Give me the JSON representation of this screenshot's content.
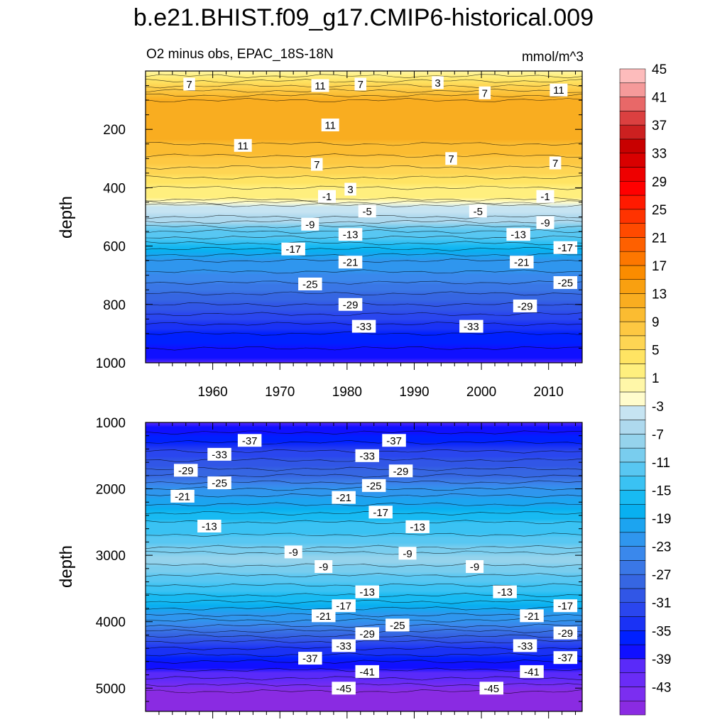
{
  "main_title": "b.e21.BHIST.f09_g17.CMIP6-historical.009",
  "chart_data": [
    {
      "type": "contour",
      "panel": "upper",
      "left_title": "O2 minus obs, EPAC_18S-18N",
      "right_title": "mmol/m^3",
      "ylabel": "depth",
      "xlim": [
        1950,
        2015
      ],
      "ylim": [
        0,
        1000
      ],
      "y_inverted": true,
      "x_ticks": [
        1960,
        1970,
        1980,
        1990,
        2000,
        2010
      ],
      "y_ticks": [
        200,
        400,
        600,
        800,
        1000
      ],
      "x_tick_labels": [
        "1960",
        "1970",
        "1980",
        "1990",
        "2000",
        "2010"
      ],
      "y_tick_labels": [
        "200",
        "400",
        "600",
        "800",
        "1000"
      ],
      "profile": [
        {
          "depth": 0,
          "value": 1
        },
        {
          "depth": 60,
          "value": 8
        },
        {
          "depth": 100,
          "value": 13
        },
        {
          "depth": 250,
          "value": 11
        },
        {
          "depth": 330,
          "value": 7
        },
        {
          "depth": 400,
          "value": 3
        },
        {
          "depth": 440,
          "value": 1
        },
        {
          "depth": 460,
          "value": -3
        },
        {
          "depth": 500,
          "value": -5
        },
        {
          "depth": 550,
          "value": -11
        },
        {
          "depth": 650,
          "value": -21
        },
        {
          "depth": 800,
          "value": -29
        },
        {
          "depth": 900,
          "value": -35
        },
        {
          "depth": 1000,
          "value": -39
        }
      ],
      "contour_labels": [
        {
          "text": "7",
          "year": 1956.5,
          "depth": 45
        },
        {
          "text": "11",
          "year": 1976,
          "depth": 50
        },
        {
          "text": "7",
          "year": 1982,
          "depth": 45
        },
        {
          "text": "3",
          "year": 1993.5,
          "depth": 40
        },
        {
          "text": "7",
          "year": 2000.5,
          "depth": 75
        },
        {
          "text": "11",
          "year": 2011.5,
          "depth": 65
        },
        {
          "text": "11",
          "year": 1964.5,
          "depth": 255
        },
        {
          "text": "11",
          "year": 1977.5,
          "depth": 185
        },
        {
          "text": "7",
          "year": 1975.5,
          "depth": 320
        },
        {
          "text": "7",
          "year": 1995.5,
          "depth": 300
        },
        {
          "text": "7",
          "year": 2011,
          "depth": 315
        },
        {
          "text": "3",
          "year": 1980.5,
          "depth": 405
        },
        {
          "text": "-1",
          "year": 1977,
          "depth": 430
        },
        {
          "text": "-1",
          "year": 2009.5,
          "depth": 430
        },
        {
          "text": "-5",
          "year": 1983,
          "depth": 480
        },
        {
          "text": "-5",
          "year": 1999.5,
          "depth": 480
        },
        {
          "text": "-9",
          "year": 1974.5,
          "depth": 525
        },
        {
          "text": "-9",
          "year": 2009.5,
          "depth": 520
        },
        {
          "text": "-13",
          "year": 1980.5,
          "depth": 560
        },
        {
          "text": "-13",
          "year": 2005.5,
          "depth": 560
        },
        {
          "text": "-17",
          "year": 1972,
          "depth": 610
        },
        {
          "text": "-17",
          "year": 2012.5,
          "depth": 605
        },
        {
          "text": "-21",
          "year": 1980.5,
          "depth": 655
        },
        {
          "text": "-21",
          "year": 2006,
          "depth": 655
        },
        {
          "text": "-25",
          "year": 1974.5,
          "depth": 730
        },
        {
          "text": "-25",
          "year": 2012.5,
          "depth": 725
        },
        {
          "text": "-29",
          "year": 1980.5,
          "depth": 800
        },
        {
          "text": "-29",
          "year": 2006.5,
          "depth": 805
        },
        {
          "text": "-33",
          "year": 1982.5,
          "depth": 875
        },
        {
          "text": "-33",
          "year": 1998.5,
          "depth": 875
        }
      ]
    },
    {
      "type": "contour",
      "panel": "lower",
      "ylabel": "depth",
      "xlim": [
        1950,
        2015
      ],
      "ylim": [
        1000,
        5350
      ],
      "y_inverted": true,
      "x_ticks": [
        1960,
        1970,
        1980,
        1990,
        2000,
        2010
      ],
      "y_ticks": [
        1000,
        2000,
        3000,
        4000,
        5000
      ],
      "y_tick_labels": [
        "1000",
        "2000",
        "3000",
        "4000",
        "5000"
      ],
      "profile": [
        {
          "depth": 1000,
          "value": -39
        },
        {
          "depth": 1300,
          "value": -35
        },
        {
          "depth": 1700,
          "value": -29
        },
        {
          "depth": 2100,
          "value": -21
        },
        {
          "depth": 2500,
          "value": -15
        },
        {
          "depth": 2880,
          "value": -11
        },
        {
          "depth": 3000,
          "value": -8
        },
        {
          "depth": 3150,
          "value": -9
        },
        {
          "depth": 3300,
          "value": -11
        },
        {
          "depth": 3600,
          "value": -15
        },
        {
          "depth": 3900,
          "value": -21
        },
        {
          "depth": 4300,
          "value": -31
        },
        {
          "depth": 4600,
          "value": -37
        },
        {
          "depth": 4850,
          "value": -41
        },
        {
          "depth": 5050,
          "value": -45
        },
        {
          "depth": 5350,
          "value": -46
        }
      ],
      "contour_labels": [
        {
          "text": "-37",
          "year": 1965.5,
          "depth": 1270
        },
        {
          "text": "-37",
          "year": 1987,
          "depth": 1270
        },
        {
          "text": "-33",
          "year": 1961,
          "depth": 1480
        },
        {
          "text": "-33",
          "year": 1983,
          "depth": 1500
        },
        {
          "text": "-29",
          "year": 1956,
          "depth": 1720
        },
        {
          "text": "-29",
          "year": 1988,
          "depth": 1730
        },
        {
          "text": "-25",
          "year": 1961,
          "depth": 1910
        },
        {
          "text": "-25",
          "year": 1984,
          "depth": 1950
        },
        {
          "text": "-21",
          "year": 1955.5,
          "depth": 2110
        },
        {
          "text": "-21",
          "year": 1979.5,
          "depth": 2130
        },
        {
          "text": "-17",
          "year": 1985,
          "depth": 2350
        },
        {
          "text": "-13",
          "year": 1959.5,
          "depth": 2560
        },
        {
          "text": "-13",
          "year": 1990.5,
          "depth": 2570
        },
        {
          "text": "-9",
          "year": 1972,
          "depth": 2950
        },
        {
          "text": "-9",
          "year": 1989,
          "depth": 2970
        },
        {
          "text": "-9",
          "year": 1976.5,
          "depth": 3170
        },
        {
          "text": "-9",
          "year": 1999,
          "depth": 3170
        },
        {
          "text": "-13",
          "year": 1983,
          "depth": 3550
        },
        {
          "text": "-13",
          "year": 2003.5,
          "depth": 3550
        },
        {
          "text": "-17",
          "year": 1979.5,
          "depth": 3760
        },
        {
          "text": "-17",
          "year": 2012.5,
          "depth": 3760
        },
        {
          "text": "-21",
          "year": 1976.5,
          "depth": 3910
        },
        {
          "text": "-21",
          "year": 2007.5,
          "depth": 3910
        },
        {
          "text": "-25",
          "year": 1987.5,
          "depth": 4050
        },
        {
          "text": "-29",
          "year": 1983,
          "depth": 4180
        },
        {
          "text": "-29",
          "year": 2012.5,
          "depth": 4170
        },
        {
          "text": "-33",
          "year": 1979.5,
          "depth": 4360
        },
        {
          "text": "-33",
          "year": 2006.5,
          "depth": 4360
        },
        {
          "text": "-37",
          "year": 1974.5,
          "depth": 4550
        },
        {
          "text": "-37",
          "year": 2012.5,
          "depth": 4540
        },
        {
          "text": "-41",
          "year": 1983,
          "depth": 4750
        },
        {
          "text": "-41",
          "year": 2007.5,
          "depth": 4750
        },
        {
          "text": "-45",
          "year": 1979.5,
          "depth": 5000
        },
        {
          "text": "-45",
          "year": 2001.5,
          "depth": 5000
        }
      ]
    }
  ],
  "colorbar": {
    "levels": [
      -45,
      -43,
      -41,
      -39,
      -37,
      -35,
      -33,
      -31,
      -29,
      -27,
      -25,
      -23,
      -21,
      -19,
      -17,
      -15,
      -13,
      -11,
      -9,
      -7,
      -5,
      -3,
      -1,
      1,
      3,
      5,
      7,
      9,
      11,
      13,
      15,
      17,
      19,
      21,
      23,
      25,
      27,
      29,
      31,
      33,
      35,
      37,
      39,
      41,
      43,
      45
    ],
    "labels": [
      "45",
      "41",
      "37",
      "33",
      "29",
      "25",
      "21",
      "17",
      "13",
      "9",
      "5",
      "1",
      "-3",
      "-7",
      "-11",
      "-15",
      "-19",
      "-23",
      "-27",
      "-31",
      "-35",
      "-39",
      "-43"
    ],
    "colors": [
      "#8a2be2",
      "#7b2ef0",
      "#6a2cf6",
      "#5a2af9",
      "#1010ff",
      "#0020ff",
      "#1a32f5",
      "#2a46ee",
      "#3156e6",
      "#3666e2",
      "#3a77e6",
      "#3a88ec",
      "#2f96ee",
      "#1ca4f0",
      "#08b0f0",
      "#18baf2",
      "#3ac2f3",
      "#58c7f2",
      "#79cdee",
      "#95d3ec",
      "#aed9ee",
      "#c6e4f2",
      "#fffccc",
      "#fff7a8",
      "#ffef7e",
      "#ffe463",
      "#fed553",
      "#fdc842",
      "#fbbc31",
      "#f9ad20",
      "#f9a010",
      "#fb8c00",
      "#fd7700",
      "#fe6000",
      "#ff4a00",
      "#ff3300",
      "#ff1a00",
      "#ff0000",
      "#ee0000",
      "#d90000",
      "#c80000",
      "#cc2020",
      "#db4040",
      "#e86868",
      "#f59a9a",
      "#fdbcbc"
    ]
  }
}
